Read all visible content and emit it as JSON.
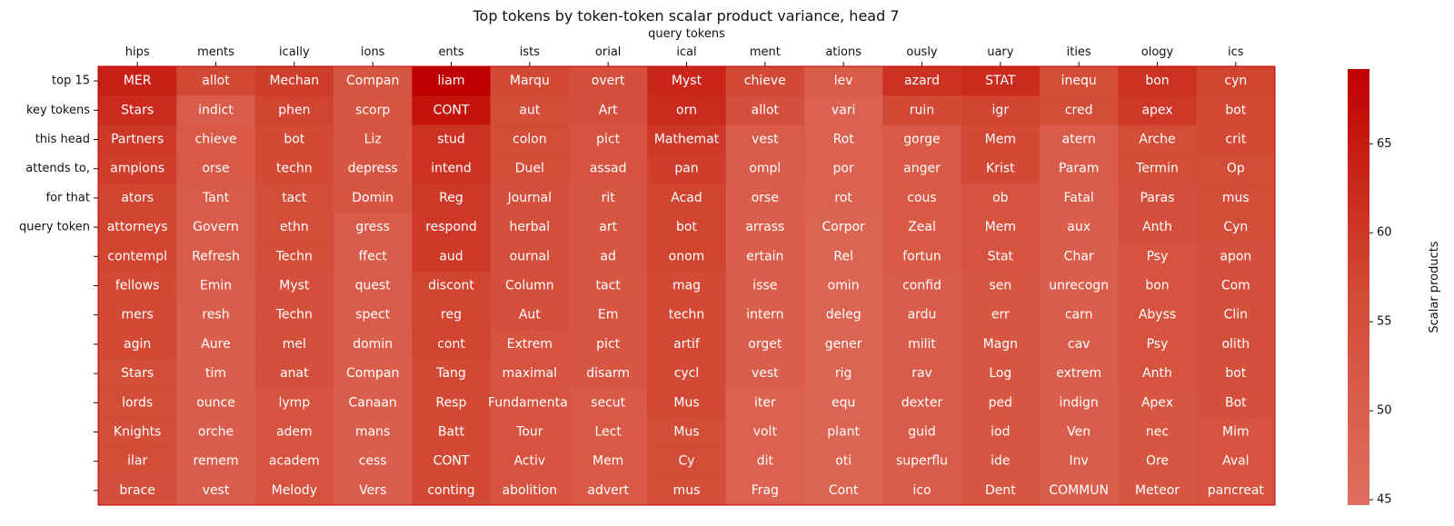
{
  "chart_data": {
    "type": "heatmap",
    "title": "Top tokens by token-token scalar product variance, head 7",
    "xlabel": "query tokens",
    "ylabel_lines": [
      "top 15",
      "key tokens",
      "this head",
      "attends to,",
      "for that",
      "query token",
      "",
      "",
      "",
      "",
      "",
      "",
      "",
      "",
      ""
    ],
    "columns": [
      "hips",
      "ments",
      "ically",
      "ions",
      "ents",
      "ists",
      "orial",
      "ical",
      "ment",
      "ations",
      "ously",
      "uary",
      "ities",
      "ology",
      "ics"
    ],
    "cell_tokens": [
      [
        "MER",
        "Stars",
        "Partners",
        "ampions",
        "ators",
        "attorneys",
        "contempl",
        "fellows",
        "mers",
        "agin",
        "Stars",
        "lords",
        "Knights",
        "ilar",
        "brace"
      ],
      [
        "allot",
        "indict",
        "chieve",
        "orse",
        "Tant",
        "Govern",
        "Refresh",
        "Emin",
        "resh",
        "Aure",
        "tim",
        "ounce",
        "orche",
        "remem",
        "vest"
      ],
      [
        "Mechan",
        "phen",
        "bot",
        "techn",
        "tact",
        "ethn",
        "Techn",
        "Myst",
        "Techn",
        "mel",
        "anat",
        "lymp",
        "adem",
        "academ",
        "Melody"
      ],
      [
        "Compan",
        "scorp",
        "Liz",
        "depress",
        "Domin",
        "gress",
        "ffect",
        "quest",
        "spect",
        "domin",
        "Compan",
        "Canaan",
        "mans",
        "cess",
        "Vers"
      ],
      [
        "liam",
        "CONT",
        "stud",
        "intend",
        "Reg",
        "respond",
        "aud",
        "discont",
        "reg",
        "cont",
        "Tang",
        "Resp",
        "Batt",
        "CONT",
        "conting"
      ],
      [
        "Marqu",
        "aut",
        "colon",
        "Duel",
        "Journal",
        "herbal",
        "ournal",
        "Column",
        "Aut",
        "Extrem",
        "maximal",
        "Fundamental",
        "Tour",
        "Activ",
        "abolition"
      ],
      [
        "overt",
        "Art",
        "pict",
        "assad",
        "rit",
        "art",
        "ad",
        "tact",
        "Em",
        "pict",
        "disarm",
        "secut",
        "Lect",
        "Mem",
        "advert"
      ],
      [
        "Myst",
        "orn",
        "Mathemat",
        "pan",
        "Acad",
        "bot",
        "onom",
        "mag",
        "techn",
        "artif",
        "cycl",
        "Mus",
        "Mus",
        "Cy",
        "mus"
      ],
      [
        "chieve",
        "allot",
        "vest",
        "ompl",
        "orse",
        "arrass",
        "ertain",
        "isse",
        "intern",
        "orget",
        "vest",
        "iter",
        "volt",
        "dit",
        "Frag"
      ],
      [
        "lev",
        "vari",
        "Rot",
        "por",
        "rot",
        "Corpor",
        "Rel",
        "omin",
        "deleg",
        "gener",
        "rig",
        "equ",
        "plant",
        "oti",
        "Cont"
      ],
      [
        "azard",
        "ruin",
        "gorge",
        "anger",
        "cous",
        "Zeal",
        "fortun",
        "confid",
        "ardu",
        "milit",
        "rav",
        "dexter",
        "guid",
        "superflu",
        "ico"
      ],
      [
        "STAT",
        "igr",
        "Mem",
        "Krist",
        "ob",
        "Mem",
        "Stat",
        "sen",
        "err",
        "Magn",
        "Log",
        "ped",
        "iod",
        "ide",
        "Dent"
      ],
      [
        "inequ",
        "cred",
        "atern",
        "Param",
        "Fatal",
        "aux",
        "Char",
        "unrecogn",
        "carn",
        "cav",
        "extrem",
        "indign",
        "Ven",
        "Inv",
        "COMMUN"
      ],
      [
        "bon",
        "apex",
        "Arche",
        "Termin",
        "Paras",
        "Anth",
        "Psy",
        "bon",
        "Abyss",
        "Psy",
        "Anth",
        "Apex",
        "nec",
        "Ore",
        "Meteor"
      ],
      [
        "cyn",
        "bot",
        "crit",
        "Op",
        "mus",
        "Cyn",
        "apon",
        "Com",
        "Clin",
        "olith",
        "bot",
        "Bot",
        "Mim",
        "Aval",
        "pancreat"
      ]
    ],
    "cell_values": [
      [
        64,
        62,
        60,
        59,
        58,
        58,
        58,
        57,
        57,
        57,
        56,
        56,
        56,
        56,
        55
      ],
      [
        57,
        51,
        52,
        52,
        51,
        51,
        51,
        51,
        50,
        50,
        50,
        50,
        50,
        50,
        50
      ],
      [
        59,
        58,
        57,
        57,
        56,
        56,
        56,
        55,
        55,
        55,
        55,
        54,
        54,
        54,
        54
      ],
      [
        53,
        53,
        53,
        53,
        53,
        51,
        51,
        51,
        51,
        50,
        50,
        50,
        50,
        50,
        50
      ],
      [
        69,
        66,
        61,
        61,
        60,
        60,
        60,
        58,
        58,
        58,
        57,
        57,
        57,
        57,
        57
      ],
      [
        57,
        56,
        56,
        56,
        55,
        55,
        55,
        55,
        55,
        54,
        54,
        54,
        54,
        54,
        54
      ],
      [
        55,
        55,
        54,
        54,
        53,
        53,
        53,
        53,
        53,
        53,
        53,
        52,
        52,
        52,
        52
      ],
      [
        63,
        62,
        60,
        59,
        58,
        58,
        58,
        57,
        57,
        57,
        57,
        57,
        56,
        56,
        56
      ],
      [
        57,
        55,
        51,
        51,
        50,
        50,
        50,
        50,
        50,
        50,
        50,
        49,
        49,
        49,
        49
      ],
      [
        51,
        49,
        49,
        49,
        49,
        48,
        48,
        48,
        48,
        48,
        48,
        48,
        48,
        48,
        48
      ],
      [
        61,
        57,
        52,
        52,
        52,
        52,
        52,
        51,
        51,
        51,
        51,
        51,
        51,
        51,
        51
      ],
      [
        62,
        58,
        57,
        57,
        54,
        54,
        54,
        53,
        53,
        53,
        53,
        53,
        53,
        53,
        53
      ],
      [
        56,
        56,
        51,
        51,
        51,
        50,
        50,
        50,
        50,
        50,
        50,
        50,
        50,
        50,
        50
      ],
      [
        61,
        60,
        56,
        56,
        55,
        55,
        54,
        54,
        54,
        54,
        54,
        53,
        53,
        53,
        53
      ],
      [
        58,
        57,
        57,
        56,
        56,
        56,
        55,
        55,
        55,
        55,
        55,
        55,
        54,
        54,
        54
      ]
    ],
    "colorbar": {
      "label": "Scalar products",
      "range": [
        44.7,
        69.2
      ],
      "ticks": [
        45,
        50,
        55,
        60,
        65
      ]
    },
    "colors": {
      "low": "#e06e5e",
      "mid": "#d24a35",
      "high": "#c00000"
    }
  }
}
